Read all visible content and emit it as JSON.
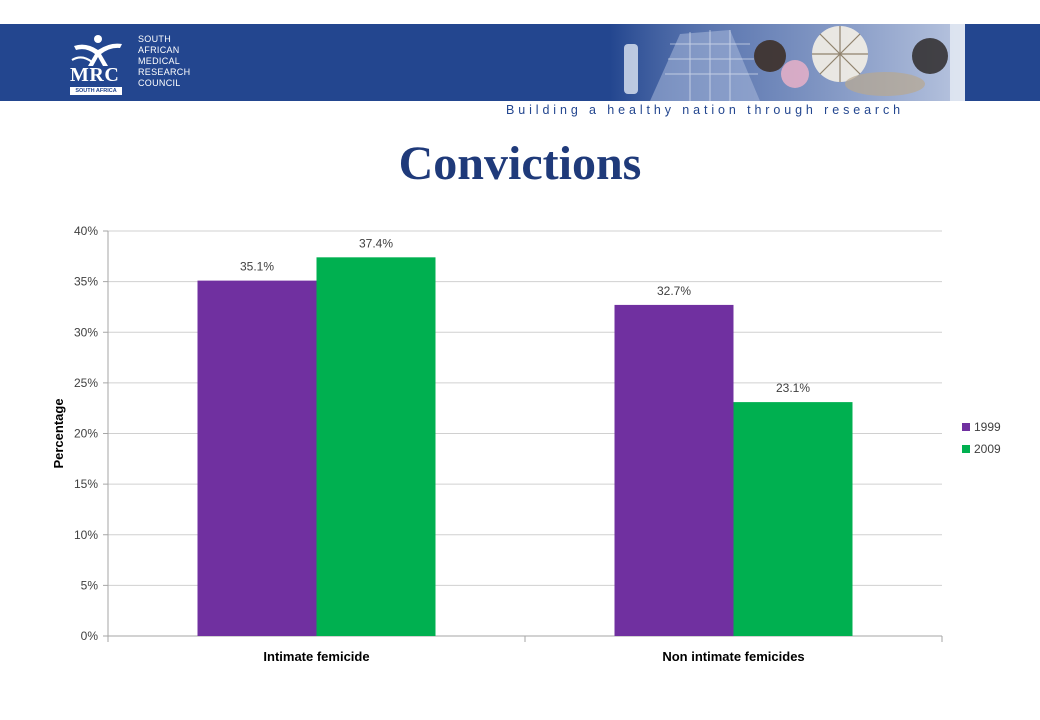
{
  "header": {
    "org_lines": [
      "SOUTH",
      "AFRICAN",
      "MEDICAL",
      "RESEARCH",
      "COUNCIL"
    ],
    "logo_text": "MRC",
    "logo_subtext": "SOUTH AFRICA",
    "tagline": "Building a healthy nation through research",
    "banner_color": "#23468f"
  },
  "slide": {
    "title": "Convictions"
  },
  "chart_data": {
    "type": "bar",
    "title": "",
    "categories": [
      "Intimate femicide",
      "Non intimate femicides"
    ],
    "series": [
      {
        "name": "1999",
        "color": "#7030a0",
        "values": [
          35.1,
          32.7
        ],
        "labels": [
          "35.1%",
          "32.7%"
        ]
      },
      {
        "name": "2009",
        "color": "#00b050",
        "values": [
          37.4,
          23.1
        ],
        "labels": [
          "37.4%",
          "23.1%"
        ]
      }
    ],
    "xlabel": "",
    "ylabel": "Percentage",
    "ylim": [
      0,
      40
    ],
    "yticks": [
      0,
      5,
      10,
      15,
      20,
      25,
      30,
      35,
      40
    ],
    "ytick_labels": [
      "0%",
      "5%",
      "10%",
      "15%",
      "20%",
      "25%",
      "30%",
      "35%",
      "40%"
    ],
    "grid": true,
    "legend_position": "right"
  }
}
